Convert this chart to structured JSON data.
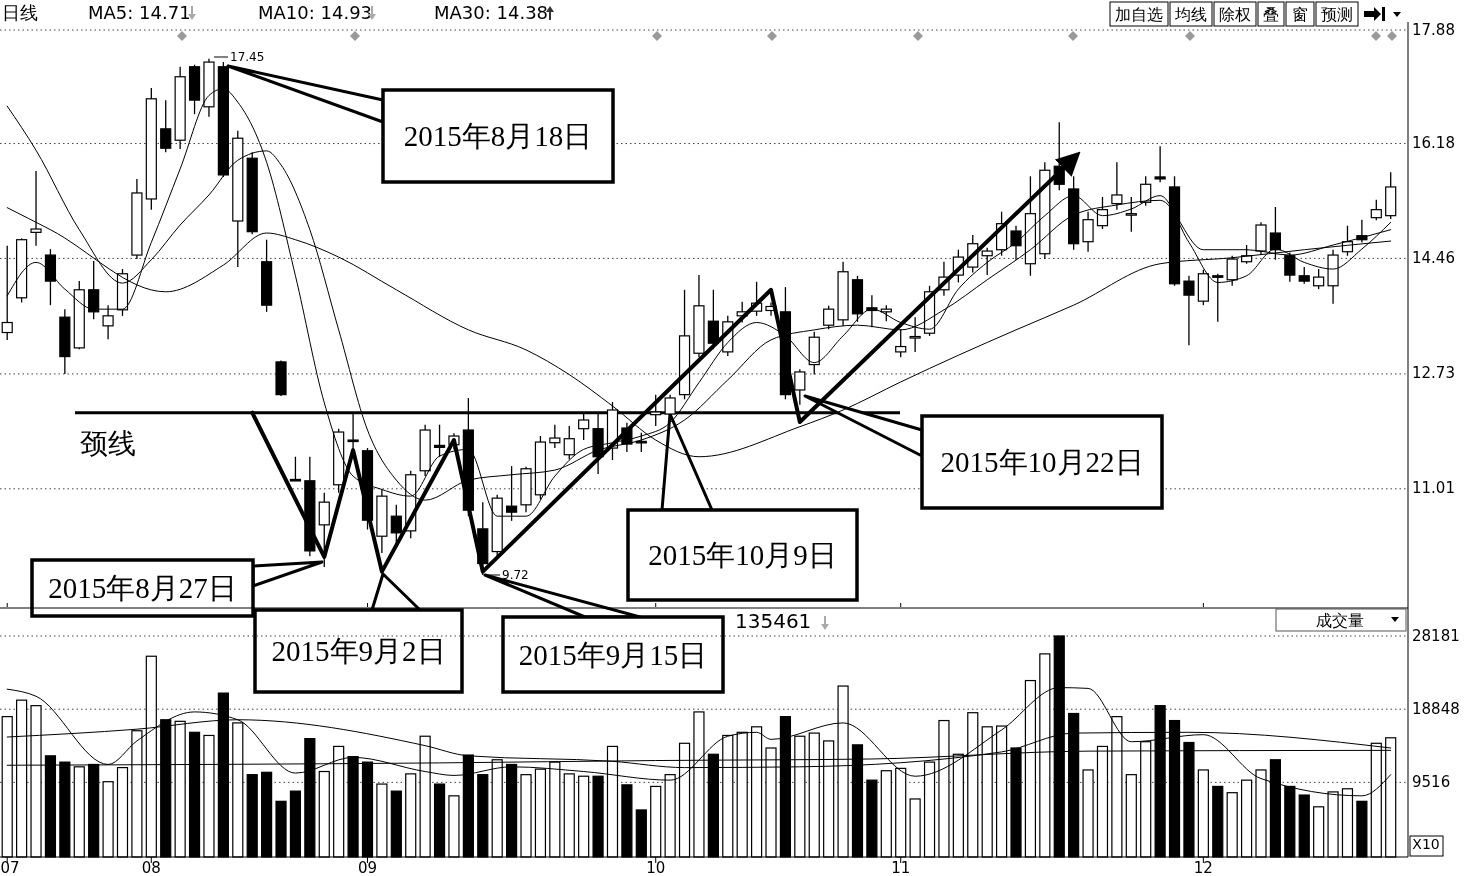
{
  "chart_data": [
    {
      "type": "candlestick",
      "categories": [
        "07",
        null,
        null,
        null,
        null,
        null,
        null,
        null,
        null,
        null,
        "08",
        null,
        null,
        null,
        null,
        null,
        null,
        null,
        null,
        null,
        null,
        null,
        null,
        null,
        null,
        "09",
        null,
        null,
        null,
        null,
        null,
        null,
        null,
        null,
        null,
        null,
        null,
        null,
        null,
        null,
        null,
        null,
        null,
        null,
        null,
        "10",
        null,
        null,
        null,
        null,
        null,
        null,
        null,
        null,
        null,
        null,
        null,
        null,
        null,
        null,
        null,
        null,
        "11",
        null,
        null,
        null,
        null,
        null,
        null,
        null,
        null,
        null,
        null,
        null,
        null,
        null,
        null,
        null,
        null,
        null,
        null,
        null,
        null,
        "12",
        null,
        null,
        null,
        null,
        null,
        null,
        null,
        null,
        null,
        null,
        null,
        null,
        null
      ],
      "ohlc": [
        [
          13.35,
          14.65,
          13.24,
          13.5
        ],
        [
          13.87,
          14.76,
          13.8,
          14.74
        ],
        [
          14.85,
          15.77,
          14.65,
          14.9
        ],
        [
          14.51,
          14.6,
          13.76,
          14.12
        ],
        [
          13.58,
          13.7,
          12.73,
          12.99
        ],
        [
          13.12,
          14.12,
          13.1,
          13.99
        ],
        [
          13.99,
          14.42,
          13.55,
          13.66
        ],
        [
          13.45,
          13.76,
          13.25,
          13.6
        ],
        [
          13.69,
          14.3,
          13.6,
          14.23
        ],
        [
          14.51,
          15.65,
          14.45,
          15.44
        ],
        [
          15.35,
          17.01,
          15.19,
          16.85
        ],
        [
          16.4,
          16.83,
          16.05,
          16.11
        ],
        [
          16.23,
          17.33,
          16.1,
          17.18
        ],
        [
          17.33,
          17.36,
          16.62,
          16.83
        ],
        [
          16.73,
          17.45,
          16.58,
          17.4
        ],
        [
          17.33,
          17.4,
          15.68,
          15.71
        ],
        [
          15.02,
          16.37,
          14.33,
          16.26
        ],
        [
          15.96,
          16.05,
          14.82,
          14.86
        ],
        [
          14.41,
          14.74,
          13.66,
          13.76
        ],
        [
          12.91,
          12.93,
          12.4,
          12.42
        ],
        [
          11.15,
          11.49,
          11.13,
          11.13
        ],
        [
          11.13,
          11.49,
          10.0,
          10.08
        ],
        [
          10.47,
          10.95,
          9.84,
          10.81
        ],
        [
          11.07,
          11.91,
          10.95,
          11.86
        ],
        [
          11.74,
          12.16,
          11.56,
          11.72
        ],
        [
          11.58,
          11.62,
          10.4,
          10.54
        ],
        [
          10.3,
          11.0,
          10.05,
          10.9
        ],
        [
          10.6,
          10.77,
          10.2,
          10.35
        ],
        [
          10.38,
          11.28,
          10.27,
          11.22
        ],
        [
          11.28,
          11.97,
          11.2,
          11.89
        ],
        [
          11.66,
          11.97,
          11.49,
          11.63
        ],
        [
          11.67,
          11.84,
          11.6,
          11.8
        ],
        [
          11.89,
          12.37,
          10.6,
          10.69
        ],
        [
          10.41,
          10.81,
          9.72,
          9.89
        ],
        [
          10.07,
          10.92,
          10.0,
          10.87
        ],
        [
          10.75,
          11.35,
          10.53,
          10.66
        ],
        [
          10.77,
          11.34,
          10.66,
          11.31
        ],
        [
          10.92,
          11.8,
          10.85,
          11.71
        ],
        [
          11.7,
          11.97,
          11.62,
          11.77
        ],
        [
          11.52,
          11.95,
          11.45,
          11.76
        ],
        [
          11.91,
          12.15,
          11.74,
          12.04
        ],
        [
          11.91,
          12.13,
          11.23,
          11.49
        ],
        [
          11.62,
          12.31,
          11.44,
          12.19
        ],
        [
          11.92,
          12.0,
          11.56,
          11.68
        ],
        [
          11.72,
          11.85,
          11.56,
          11.71
        ],
        [
          12.12,
          12.42,
          11.95,
          12.16
        ],
        [
          12.13,
          12.42,
          12.1,
          12.37
        ],
        [
          12.42,
          13.99,
          12.35,
          13.3
        ],
        [
          13.04,
          14.21,
          12.98,
          13.75
        ],
        [
          13.52,
          13.99,
          13.1,
          13.19
        ],
        [
          13.06,
          13.6,
          13.0,
          13.51
        ],
        [
          13.6,
          13.81,
          13.5,
          13.66
        ],
        [
          13.67,
          14.11,
          13.6,
          13.79
        ],
        [
          13.68,
          13.8,
          13.6,
          13.74
        ],
        [
          13.66,
          14.03,
          12.35,
          12.42
        ],
        [
          12.49,
          12.8,
          12.27,
          12.76
        ],
        [
          12.87,
          13.36,
          12.72,
          13.28
        ],
        [
          13.46,
          13.75,
          13.4,
          13.7
        ],
        [
          13.54,
          14.41,
          13.45,
          14.26
        ],
        [
          14.14,
          14.2,
          13.51,
          13.63
        ],
        [
          13.72,
          13.91,
          13.43,
          13.68
        ],
        [
          13.66,
          13.76,
          13.52,
          13.7
        ],
        [
          13.06,
          13.4,
          12.98,
          13.14
        ],
        [
          13.27,
          13.58,
          13.06,
          13.29
        ],
        [
          13.34,
          14.05,
          13.3,
          13.96
        ],
        [
          13.99,
          14.41,
          13.9,
          14.18
        ],
        [
          14.21,
          14.59,
          14.1,
          14.48
        ],
        [
          14.33,
          14.81,
          14.25,
          14.68
        ],
        [
          14.5,
          14.62,
          14.21,
          14.57
        ],
        [
          14.59,
          15.16,
          14.5,
          14.98
        ],
        [
          14.87,
          14.95,
          14.44,
          14.65
        ],
        [
          14.38,
          15.69,
          14.2,
          15.13
        ],
        [
          14.53,
          15.9,
          14.45,
          15.78
        ],
        [
          15.84,
          16.5,
          15.48,
          15.57
        ],
        [
          15.5,
          15.69,
          14.59,
          14.68
        ],
        [
          14.71,
          15.16,
          14.56,
          15.04
        ],
        [
          14.95,
          15.38,
          14.9,
          15.19
        ],
        [
          15.28,
          15.9,
          15.19,
          15.41
        ],
        [
          15.12,
          15.38,
          14.86,
          15.13
        ],
        [
          15.3,
          15.69,
          15.25,
          15.57
        ],
        [
          15.68,
          16.14,
          15.6,
          15.65
        ],
        [
          15.53,
          15.69,
          14.05,
          14.08
        ],
        [
          14.12,
          14.2,
          13.16,
          13.91
        ],
        [
          13.82,
          14.29,
          13.76,
          14.23
        ],
        [
          14.2,
          14.23,
          13.51,
          14.18
        ],
        [
          14.14,
          14.5,
          14.05,
          14.45
        ],
        [
          14.41,
          14.66,
          14.38,
          14.5
        ],
        [
          14.57,
          15.0,
          14.51,
          14.96
        ],
        [
          14.84,
          15.23,
          14.44,
          14.59
        ],
        [
          14.5,
          14.55,
          14.11,
          14.21
        ],
        [
          14.2,
          14.33,
          14.08,
          14.12
        ],
        [
          14.05,
          14.3,
          14.0,
          14.18
        ],
        [
          14.05,
          14.59,
          13.78,
          14.51
        ],
        [
          14.56,
          14.95,
          14.5,
          14.71
        ],
        [
          14.8,
          15.04,
          14.7,
          14.74
        ],
        [
          15.07,
          15.34,
          15.03,
          15.19
        ],
        [
          15.1,
          15.75,
          15.05,
          15.53
        ]
      ],
      "ylim": [
        9.24,
        18.0
      ],
      "yticks": [
        17.88,
        16.18,
        14.46,
        12.73,
        11.01
      ],
      "grid": "y",
      "tick_labels": "y",
      "series": [
        {
          "type": "line",
          "color": "#000000",
          "values": [
            13.9,
            null,
            14.4,
            null,
            14.0,
            null,
            13.7,
            null,
            13.7,
            null,
            14.7,
            null,
            15.8,
            null,
            16.9,
            17.0,
            16.8,
            null,
            15.9,
            null,
            14.2,
            null,
            12.3,
            null,
            11.2,
            null,
            11.0,
            null,
            10.9,
            null,
            11.5,
            null,
            11.6,
            null,
            10.6,
            null,
            10.6,
            null,
            11.2,
            null,
            11.6,
            null,
            11.7,
            null,
            11.8,
            null,
            12.0,
            null,
            12.6,
            null,
            13.2,
            null,
            13.5,
            null,
            13.3,
            null,
            12.9,
            null,
            13.3,
            null,
            13.7,
            null,
            13.5,
            null,
            13.4,
            null,
            14.0,
            null,
            14.4,
            null,
            14.7,
            null,
            15.1,
            null,
            15.4,
            null,
            15.1,
            null,
            15.2,
            null,
            15.4,
            null,
            14.7,
            null,
            14.1,
            null,
            14.2,
            null,
            14.6,
            null,
            14.4,
            null,
            14.3,
            null,
            14.6,
            null,
            15.0
          ]
        },
        {
          "type": "line",
          "color": "#000000",
          "values": [
            16.74,
            null,
            16.08,
            null,
            null,
            14.89,
            null,
            null,
            14.09,
            null,
            14.44,
            null,
            14.96,
            null,
            15.41,
            null,
            15.93,
            null,
            16.07,
            15.86,
            null,
            14.89,
            null,
            13.39,
            null,
            11.89,
            null,
            11.14,
            null,
            10.84,
            null,
            null,
            11.14,
            null,
            null,
            11.22,
            null,
            null,
            11.29,
            null,
            null,
            11.59,
            null,
            null,
            11.74,
            null,
            null,
            12.04,
            null,
            null,
            12.64,
            null,
            null,
            13.24,
            null,
            null,
            13.39,
            null,
            null,
            13.46,
            null,
            null,
            13.39,
            null,
            null,
            13.69,
            null,
            null,
            14.14,
            null,
            null,
            14.59,
            null,
            null,
            15.11,
            null,
            null,
            15.26,
            null,
            null,
            15.33,
            null,
            null,
            14.59,
            null,
            null,
            14.59,
            null,
            null,
            14.51,
            null,
            null,
            14.66,
            null,
            null,
            null,
            14.89
          ]
        },
        {
          "type": "line",
          "color": "#000000",
          "values": [
            15.22,
            null,
            null,
            14.89,
            null,
            null,
            null,
            null,
            null,
            null,
            null,
            13.96,
            null,
            null,
            null,
            14.36,
            null,
            null,
            14.84,
            null,
            14.74,
            null,
            null,
            14.48,
            null,
            null,
            null,
            13.99,
            null,
            null,
            null,
            null,
            13.39,
            null,
            null,
            null,
            13.09,
            null,
            null,
            12.72,
            null,
            null,
            12.25,
            null,
            null,
            11.74,
            null,
            null,
            11.49,
            null,
            null,
            null,
            null,
            null,
            null,
            11.94,
            null,
            null,
            12.19,
            null,
            null,
            null,
            12.61,
            null,
            null,
            null,
            13.01,
            null,
            null,
            null,
            13.39,
            null,
            null,
            null,
            13.76,
            null,
            null,
            null,
            null,
            null,
            14.38,
            null,
            null,
            null,
            null,
            14.47,
            null,
            null,
            null,
            null,
            14.59,
            null,
            null,
            null,
            null,
            null,
            14.72
          ]
        },
        {
          "type": "line",
          "color": "#000000",
          "values": [
            null,
            null,
            null,
            null,
            null,
            null,
            null,
            null,
            null,
            null,
            null,
            null,
            null,
            null,
            null,
            null,
            null,
            12.15,
            null,
            null,
            null,
            null,
            9.99,
            null,
            11.59,
            null,
            9.77,
            null,
            null,
            null,
            null,
            11.74,
            null,
            9.77,
            null,
            null,
            null,
            null,
            null,
            null,
            null,
            null,
            null,
            null,
            null,
            null,
            null,
            null,
            null,
            null,
            null,
            null,
            null,
            13.99,
            null,
            12.01,
            null,
            null,
            null,
            null,
            null,
            null,
            null,
            null,
            null,
            null,
            null,
            null,
            null,
            null,
            null,
            null,
            null,
            null,
            15.96,
            null,
            null,
            null,
            null,
            null,
            null,
            null,
            null,
            null,
            null,
            null,
            null,
            null,
            null,
            null,
            null,
            null,
            null,
            null,
            null,
            null,
            null
          ]
        }
      ],
      "ref_lines": [
        {
          "axis": "y",
          "value": 12.15,
          "label": "颈线",
          "color": "#000000"
        }
      ],
      "annotations": [
        "2015年8月18日",
        "2015年8月27日",
        "2015年9月2日",
        "2015年9月15日",
        "2015年10月9日",
        "2015年10月22日",
        "17.45",
        "9.72",
        "日线",
        "MA5: 14.71",
        "MA10: 14.93",
        "MA30: 14.38",
        "加自选",
        "均线",
        "除权",
        "叠",
        "窗",
        "预测"
      ]
    },
    {
      "type": "bar",
      "categories": [
        "07",
        null,
        null,
        null,
        null,
        null,
        null,
        null,
        null,
        null,
        "08",
        null,
        null,
        null,
        null,
        null,
        null,
        null,
        null,
        null,
        null,
        null,
        null,
        null,
        null,
        "09",
        null,
        null,
        null,
        null,
        null,
        null,
        null,
        null,
        null,
        null,
        null,
        null,
        null,
        null,
        null,
        null,
        null,
        null,
        null,
        "10",
        null,
        null,
        null,
        null,
        null,
        null,
        null,
        null,
        null,
        null,
        null,
        null,
        null,
        null,
        null,
        null,
        "11",
        null,
        null,
        null,
        null,
        null,
        null,
        null,
        null,
        null,
        null,
        null,
        null,
        null,
        null,
        null,
        null,
        null,
        null,
        null,
        null,
        "12",
        null,
        null,
        null,
        null,
        null,
        null,
        null,
        null,
        null,
        null,
        null,
        null,
        null
      ],
      "values": [
        17900,
        20000,
        19300,
        12900,
        12100,
        11500,
        11800,
        9600,
        11400,
        16100,
        25600,
        17500,
        17300,
        15900,
        15500,
        20900,
        17100,
        10500,
        10800,
        7100,
        8400,
        15100,
        10900,
        14100,
        12800,
        12100,
        9300,
        8400,
        10600,
        15400,
        9300,
        7800,
        13000,
        10500,
        12400,
        11800,
        10500,
        11200,
        12100,
        10600,
        10300,
        10300,
        14100,
        9200,
        6000,
        9000,
        10500,
        14500,
        18500,
        13100,
        15500,
        15900,
        16600,
        13900,
        17900,
        15400,
        15800,
        14800,
        21800,
        14300,
        9800,
        11000,
        11300,
        7400,
        12100,
        17400,
        13100,
        18400,
        16600,
        16700,
        13900,
        22500,
        25900,
        28181,
        18300,
        11100,
        14100,
        17900,
        10500,
        14700,
        19300,
        17400,
        14600,
        11100,
        9000,
        8200,
        9800,
        11100,
        12400,
        9000,
        7900,
        6400,
        8300,
        8700,
        7100,
        14500,
        15200
      ],
      "colors": [
        "#ffffff",
        "#ffffff",
        "#ffffff",
        "#000000",
        "#000000",
        "#ffffff",
        "#000000",
        "#ffffff",
        "#ffffff",
        "#ffffff",
        "#ffffff",
        "#000000",
        "#ffffff",
        "#000000",
        "#ffffff",
        "#000000",
        "#ffffff",
        "#000000",
        "#000000",
        "#000000",
        "#000000",
        "#000000",
        "#ffffff",
        "#ffffff",
        "#000000",
        "#000000",
        "#ffffff",
        "#000000",
        "#ffffff",
        "#ffffff",
        "#000000",
        "#ffffff",
        "#000000",
        "#000000",
        "#ffffff",
        "#000000",
        "#ffffff",
        "#ffffff",
        "#ffffff",
        "#ffffff",
        "#ffffff",
        "#000000",
        "#ffffff",
        "#000000",
        "#000000",
        "#ffffff",
        "#ffffff",
        "#ffffff",
        "#ffffff",
        "#000000",
        "#ffffff",
        "#ffffff",
        "#ffffff",
        "#ffffff",
        "#000000",
        "#ffffff",
        "#ffffff",
        "#ffffff",
        "#ffffff",
        "#000000",
        "#000000",
        "#ffffff",
        "#ffffff",
        "#ffffff",
        "#ffffff",
        "#ffffff",
        "#ffffff",
        "#ffffff",
        "#ffffff",
        "#ffffff",
        "#000000",
        "#ffffff",
        "#ffffff",
        "#000000",
        "#000000",
        "#ffffff",
        "#ffffff",
        "#ffffff",
        "#ffffff",
        "#ffffff",
        "#000000",
        "#000000",
        "#000000",
        "#ffffff",
        "#000000",
        "#ffffff",
        "#ffffff",
        "#ffffff",
        "#000000",
        "#000000",
        "#000000",
        "#ffffff",
        "#ffffff",
        "#ffffff",
        "#000000",
        "#ffffff",
        "#ffffff"
      ],
      "ylim": [
        0,
        28181
      ],
      "yticks": [
        28181,
        18848,
        9516
      ],
      "grid": "y",
      "series": [
        {
          "type": "line",
          "color": "#000000",
          "values": [
            21400,
            null,
            20500,
            null,
            null,
            null,
            null,
            11800,
            null,
            14800,
            null,
            null,
            null,
            18500,
            null,
            null,
            17500,
            null,
            null,
            null,
            10700,
            null,
            null,
            null,
            12700,
            null,
            null,
            null,
            null,
            10900,
            null,
            10400,
            null,
            null,
            null,
            11500,
            null,
            null,
            null,
            null,
            10900,
            null,
            null,
            null,
            null,
            null,
            9800,
            null,
            null,
            null,
            15400,
            null,
            15900,
            15000,
            null,
            null,
            null,
            null,
            17100,
            null,
            null,
            null,
            null,
            10300,
            null,
            null,
            null,
            null,
            null,
            16200,
            null,
            null,
            null,
            21600,
            null,
            21500,
            null,
            null,
            14700,
            null,
            null,
            null,
            null,
            15600,
            null,
            null,
            null,
            10000,
            null,
            null,
            null,
            null,
            null,
            null,
            7800,
            null,
            10500
          ]
        },
        {
          "type": "line",
          "color": "#000000",
          "values": [
            15300,
            null,
            null,
            null,
            null,
            null,
            null,
            null,
            null,
            16300,
            null,
            null,
            null,
            null,
            null,
            null,
            17500,
            null,
            null,
            null,
            null,
            null,
            null,
            null,
            null,
            null,
            null,
            null,
            null,
            14200,
            null,
            null,
            12900,
            null,
            null,
            null,
            null,
            null,
            null,
            null,
            null,
            null,
            12200,
            null,
            null,
            null,
            null,
            11400,
            null,
            null,
            null,
            null,
            null,
            null,
            null,
            11500,
            null,
            null,
            null,
            null,
            null,
            null,
            null,
            null,
            null,
            null,
            null,
            null,
            null,
            13400,
            null,
            null,
            null,
            null,
            15800,
            null,
            null,
            null,
            null,
            null,
            null,
            null,
            15900,
            null,
            null,
            null,
            null,
            null,
            null,
            null,
            null,
            null,
            null,
            null,
            null,
            null,
            13900
          ]
        },
        {
          "type": "line",
          "color": "#000000",
          "values": [
            11700,
            null,
            null,
            null,
            null,
            null,
            null,
            null,
            null,
            null,
            null,
            null,
            null,
            null,
            null,
            null,
            null,
            null,
            null,
            null,
            null,
            null,
            null,
            null,
            null,
            null,
            null,
            null,
            null,
            null,
            12000,
            null,
            null,
            null,
            null,
            null,
            null,
            null,
            null,
            null,
            null,
            null,
            null,
            null,
            null,
            12300,
            null,
            null,
            null,
            null,
            null,
            null,
            null,
            null,
            null,
            null,
            null,
            null,
            null,
            null,
            12500,
            null,
            null,
            null,
            null,
            null,
            null,
            null,
            null,
            null,
            null,
            null,
            null,
            null,
            null,
            13500,
            null,
            null,
            null,
            null,
            null,
            null,
            null,
            null,
            null,
            null,
            null,
            null,
            null,
            null,
            null,
            null,
            null,
            null,
            null,
            null,
            13600
          ]
        }
      ],
      "annotations": [
        "135461",
        "成交量",
        "X10"
      ]
    }
  ]
}
